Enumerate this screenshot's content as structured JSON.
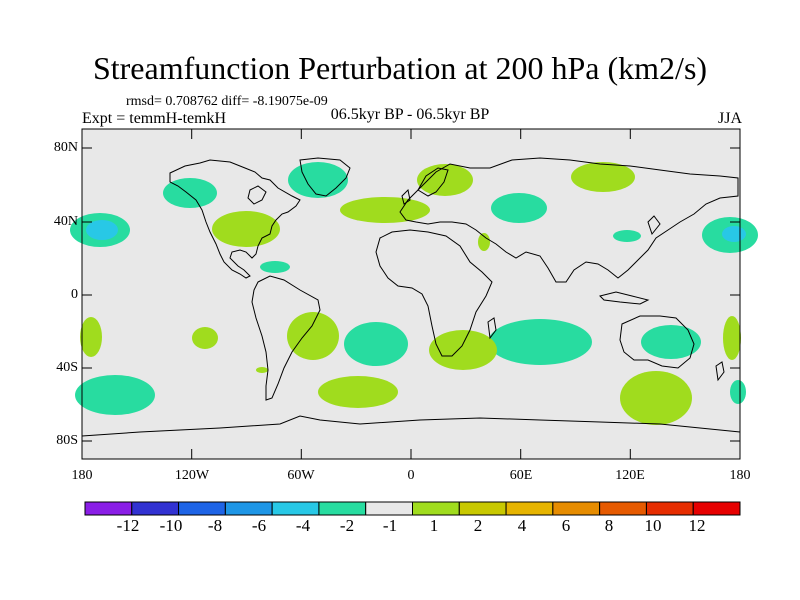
{
  "title": "Streamfunction Perturbation at 200 hPa (km2/s)",
  "stats_line": "rmsd= 0.708762 diff= -8.19075e-09",
  "experiment": "Expt = temmH-temkH",
  "period": "06.5kyr BP - 06.5kyr BP",
  "season": "JJA",
  "lat_labels": [
    "80N",
    "40N",
    "0",
    "40S",
    "80S"
  ],
  "lon_labels": [
    "180",
    "120W",
    "60W",
    "0",
    "60E",
    "120E",
    "180"
  ],
  "colorbar": {
    "labels": [
      "-12",
      "-10",
      "-8",
      "-6",
      "-4",
      "-2",
      "-1",
      "1",
      "2",
      "4",
      "6",
      "8",
      "10",
      "12"
    ],
    "colors": [
      "#8a1ee6",
      "#3232d2",
      "#1e64e6",
      "#1e96e6",
      "#28c8e6",
      "#28dca0",
      "#e8e8e8",
      "#a0dc1e",
      "#c8c800",
      "#e6b400",
      "#e68c00",
      "#e65a00",
      "#e62d00",
      "#e60000"
    ]
  },
  "colors": {
    "ocean_bg": "#e8e8e8",
    "positive_fill": "#a0dc1e",
    "negative_fill": "#28dca0",
    "strong_negative_fill": "#28c8e6"
  }
}
